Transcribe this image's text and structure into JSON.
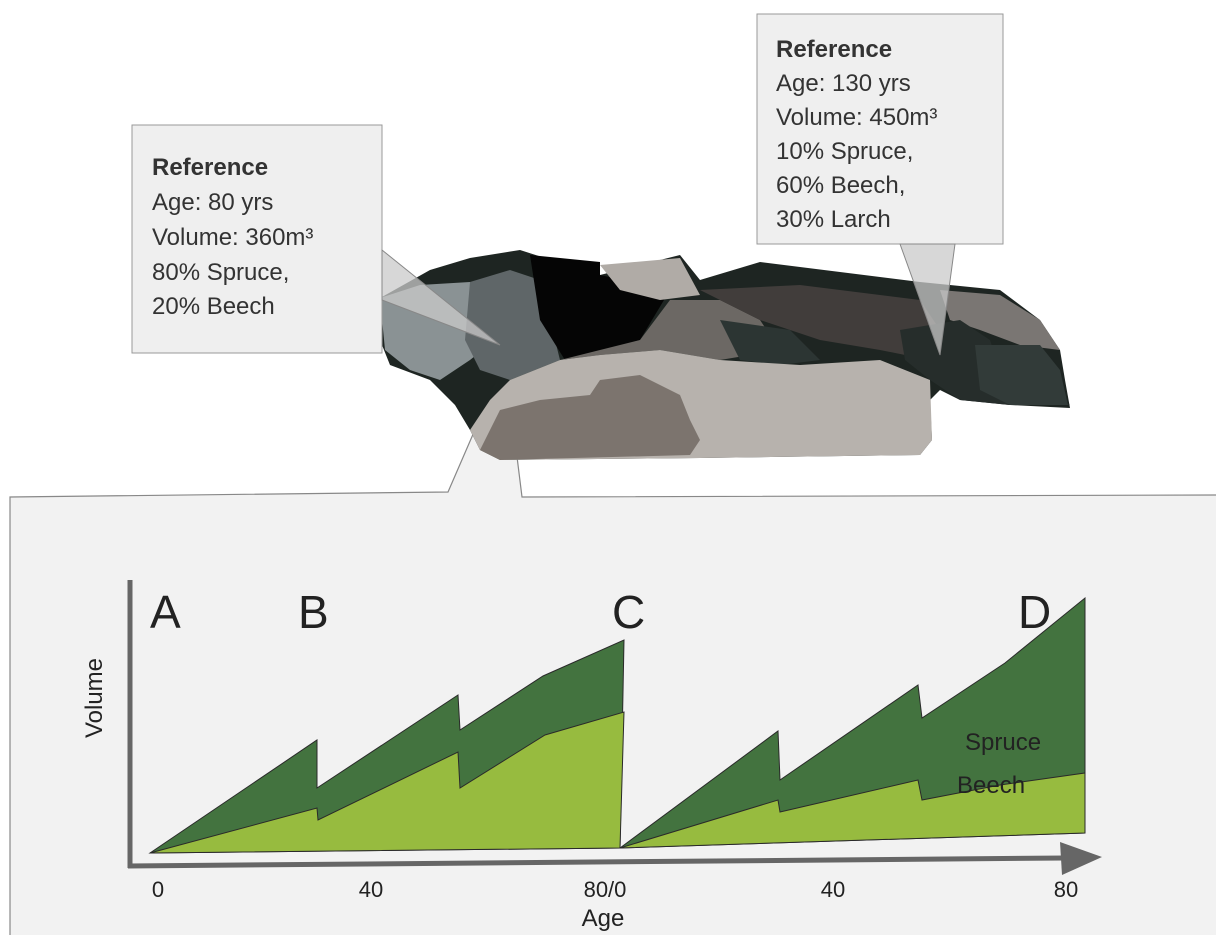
{
  "callouts": [
    {
      "title": "Reference",
      "lines": [
        "Age: 80 yrs",
        "Volume: 360m³",
        "80% Spruce,",
        "20% Beech"
      ]
    },
    {
      "title": "Reference",
      "lines": [
        "Age: 130 yrs",
        "Volume: 450m³",
        "10% Spruce,",
        "60% Beech,",
        "30% Larch"
      ]
    }
  ],
  "chart": {
    "stage_labels": [
      "A",
      "B",
      "C",
      "D"
    ],
    "series_labels": [
      "Spruce",
      "Beech"
    ],
    "y_axis_label": "Volume",
    "x_axis_label": "Age",
    "x_tick_labels": [
      "0",
      "40",
      "80/0",
      "40",
      "80"
    ]
  }
}
